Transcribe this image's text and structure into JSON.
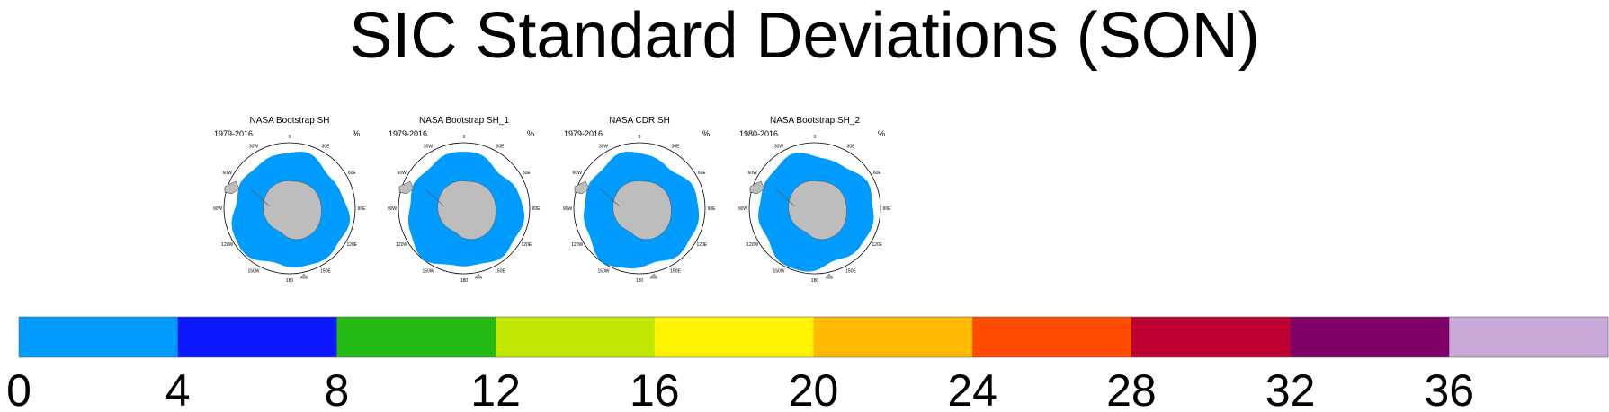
{
  "chart_data": {
    "type": "heatmap",
    "title": "SIC Standard Deviations (SON)",
    "units": "%",
    "colorbar": {
      "levels": [
        0,
        4,
        8,
        12,
        16,
        20,
        24,
        28,
        32,
        36
      ],
      "tick_labels": [
        "0",
        "4",
        "8",
        "12",
        "16",
        "20",
        "24",
        "28",
        "32",
        "36"
      ],
      "colors": [
        "#009bff",
        "#0a17ff",
        "#25b914",
        "#c0e801",
        "#fff300",
        "#ffb900",
        "#ff4c00",
        "#be0033",
        "#7f0066",
        "#c8a9d8"
      ]
    },
    "panels": [
      {
        "name": "NASA Bootstrap SH",
        "period": "1979-2016",
        "units": "%"
      },
      {
        "name": "NASA Bootstrap SH_1",
        "period": "1979-2016",
        "units": "%"
      },
      {
        "name": "NASA CDR SH",
        "period": "1979-2016",
        "units": "%"
      },
      {
        "name": "NASA Bootstrap SH_2",
        "period": "1980-2016",
        "units": "%"
      }
    ],
    "map_labels": [
      "0",
      "30E",
      "60E",
      "90E",
      "120E",
      "150E",
      "180",
      "150W",
      "120W",
      "90W",
      "60W",
      "30W"
    ]
  },
  "colors": {
    "land": "#bdbdbd",
    "background": "#ffffff"
  }
}
